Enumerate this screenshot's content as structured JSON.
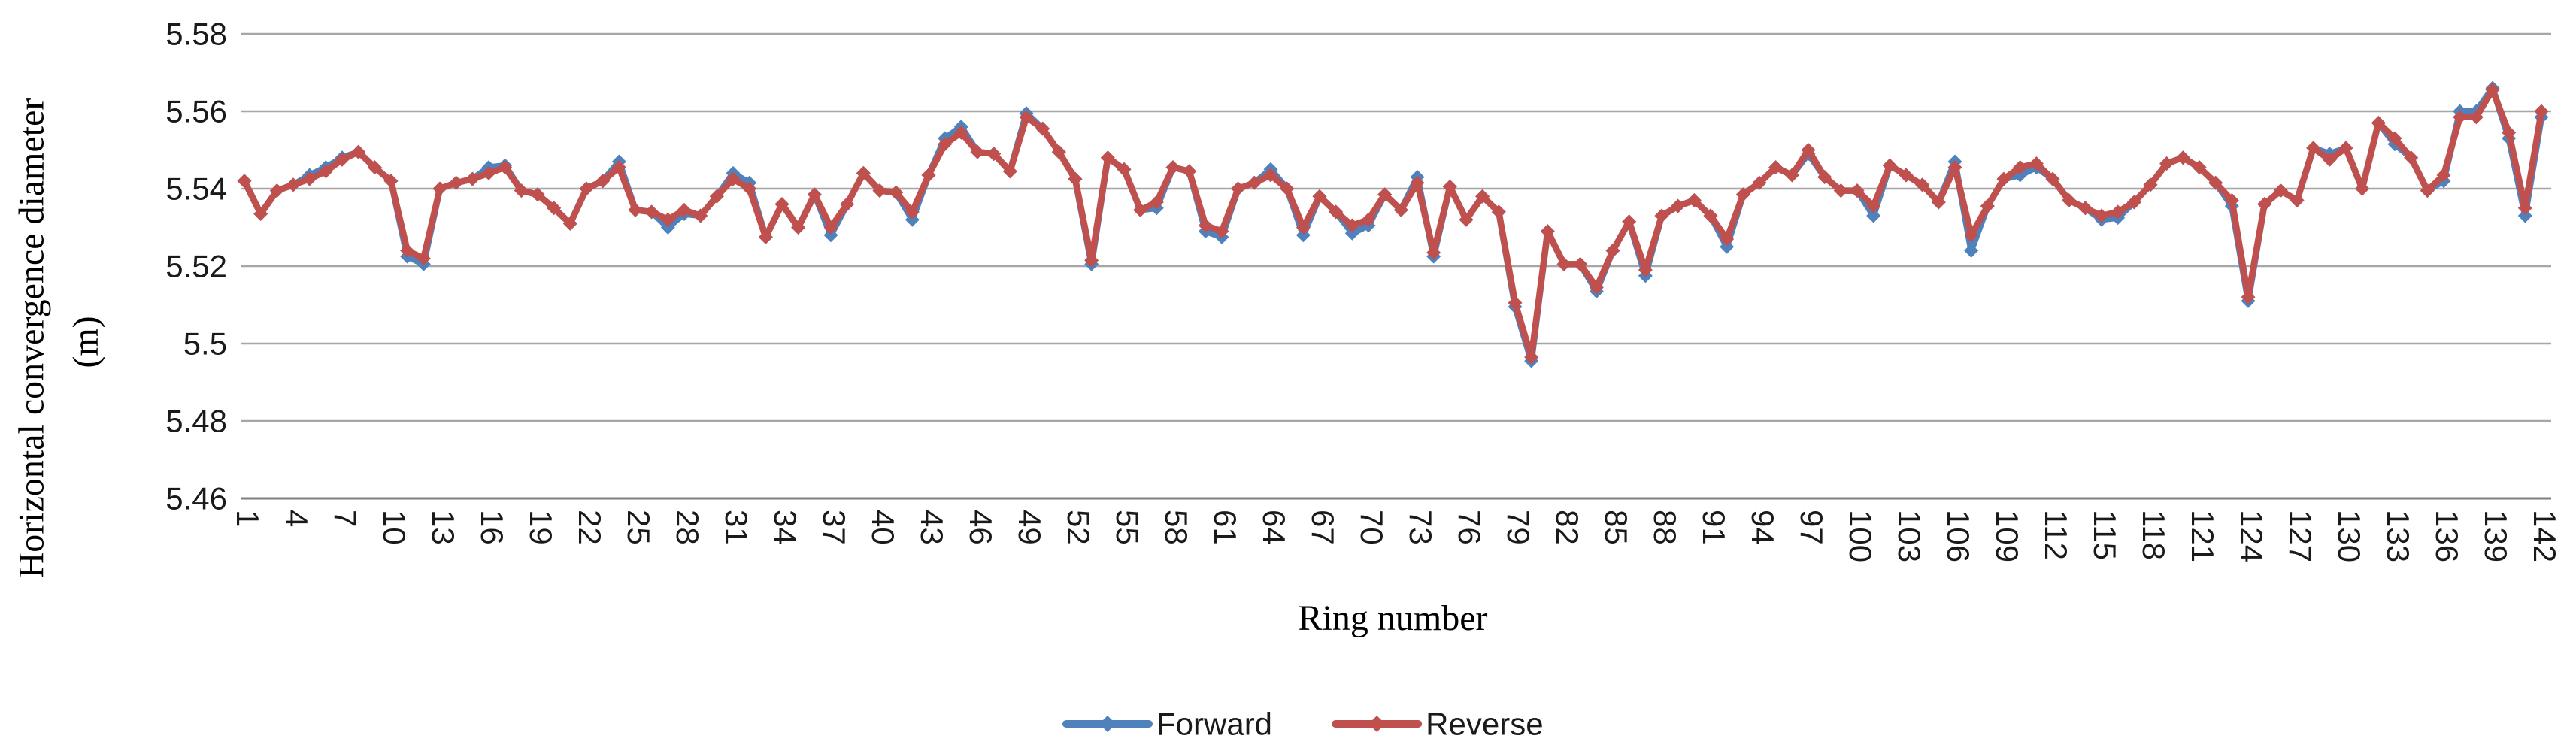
{
  "figure": {
    "background": "#ffffff",
    "x_axis_title": "Ring number",
    "y_axis_title_line1": "Horizontal convergence diameter",
    "y_axis_title_line2": "(m)",
    "text_color": "#1a1a1a",
    "gridline_color": "#a6a6a6",
    "axis_line_color": "#7f7f7f"
  },
  "legend": {
    "items": [
      {
        "label": "Forward",
        "color": "#4F81BD"
      },
      {
        "label": "Reverse",
        "color": "#C0504D"
      }
    ]
  },
  "chart_data": {
    "type": "line",
    "title": "",
    "xlabel": "Ring number",
    "ylabel": "Horizontal convergence diameter (m)",
    "ylim": [
      5.46,
      5.58
    ],
    "y_tick_labels": [
      "5.58",
      "5.56",
      "5.54",
      "5.52",
      "5.5",
      "5.48",
      "5.46"
    ],
    "y_tick_values": [
      5.58,
      5.56,
      5.54,
      5.52,
      5.5,
      5.48,
      5.46
    ],
    "x_range": [
      1,
      142
    ],
    "x_tick_labels": [
      "1",
      "4",
      "7",
      "10",
      "13",
      "16",
      "19",
      "22",
      "25",
      "28",
      "31",
      "34",
      "37",
      "40",
      "43",
      "46",
      "49",
      "52",
      "55",
      "58",
      "61",
      "64",
      "67",
      "70",
      "73",
      "76",
      "79",
      "82",
      "85",
      "88",
      "91",
      "94",
      "97",
      "100",
      "103",
      "106",
      "109",
      "112",
      "115",
      "118",
      "121",
      "124",
      "127",
      "130",
      "133",
      "136",
      "139",
      "142"
    ],
    "grid": true,
    "legend_position": "bottom",
    "marker": "diamond",
    "series": [
      {
        "name": "Forward",
        "color": "#4F81BD",
        "values": [
          5.542,
          5.5335,
          5.5395,
          5.541,
          5.5435,
          5.5455,
          5.548,
          5.5495,
          5.5455,
          5.542,
          5.5225,
          5.5205,
          5.54,
          5.5415,
          5.5425,
          5.5455,
          5.546,
          5.5395,
          5.5385,
          5.535,
          5.531,
          5.54,
          5.542,
          5.547,
          5.5345,
          5.534,
          5.53,
          5.5335,
          5.533,
          5.538,
          5.544,
          5.5415,
          5.5275,
          5.536,
          5.53,
          5.5385,
          5.528,
          5.536,
          5.544,
          5.5395,
          5.539,
          5.532,
          5.5435,
          5.553,
          5.556,
          5.5495,
          5.549,
          5.5445,
          5.5595,
          5.5555,
          5.5495,
          5.5425,
          5.5205,
          5.548,
          5.545,
          5.5345,
          5.535,
          5.5455,
          5.5445,
          5.529,
          5.5275,
          5.54,
          5.5415,
          5.545,
          5.54,
          5.528,
          5.538,
          5.534,
          5.5285,
          5.5305,
          5.5385,
          5.5345,
          5.543,
          5.5225,
          5.5405,
          5.532,
          5.538,
          5.534,
          5.5095,
          5.4955,
          5.529,
          5.5205,
          5.5205,
          5.5135,
          5.524,
          5.5315,
          5.5175,
          5.533,
          5.5355,
          5.537,
          5.533,
          5.525,
          5.5385,
          5.5415,
          5.5455,
          5.5435,
          5.549,
          5.543,
          5.5395,
          5.5395,
          5.533,
          5.546,
          5.5435,
          5.541,
          5.5365,
          5.547,
          5.524,
          5.5355,
          5.5425,
          5.5435,
          5.5455,
          5.5425,
          5.537,
          5.535,
          5.532,
          5.5325,
          5.5365,
          5.541,
          5.5465,
          5.548,
          5.5455,
          5.5415,
          5.5355,
          5.511,
          5.536,
          5.5395,
          5.537,
          5.5505,
          5.549,
          5.5505,
          5.54,
          5.557,
          5.5515,
          5.548,
          5.5395,
          5.542,
          5.56,
          5.56,
          5.566,
          5.553,
          5.533,
          5.5585
        ]
      },
      {
        "name": "Reverse",
        "color": "#C0504D",
        "values": [
          5.542,
          5.5335,
          5.5395,
          5.541,
          5.5425,
          5.5445,
          5.5475,
          5.5495,
          5.5455,
          5.542,
          5.524,
          5.522,
          5.54,
          5.5415,
          5.5425,
          5.544,
          5.5455,
          5.5395,
          5.5385,
          5.535,
          5.531,
          5.54,
          5.542,
          5.5455,
          5.5345,
          5.534,
          5.532,
          5.5345,
          5.533,
          5.538,
          5.5425,
          5.54,
          5.5275,
          5.536,
          5.53,
          5.5385,
          5.53,
          5.536,
          5.544,
          5.5395,
          5.539,
          5.534,
          5.5435,
          5.5515,
          5.5545,
          5.5495,
          5.549,
          5.5445,
          5.5585,
          5.5555,
          5.5495,
          5.5425,
          5.5215,
          5.548,
          5.545,
          5.5345,
          5.5365,
          5.5455,
          5.5445,
          5.5305,
          5.529,
          5.54,
          5.5415,
          5.5435,
          5.54,
          5.53,
          5.538,
          5.534,
          5.5305,
          5.532,
          5.5385,
          5.5345,
          5.5415,
          5.5235,
          5.5405,
          5.532,
          5.538,
          5.534,
          5.5105,
          5.4965,
          5.529,
          5.5205,
          5.5205,
          5.5145,
          5.524,
          5.5315,
          5.519,
          5.533,
          5.5355,
          5.537,
          5.533,
          5.527,
          5.5385,
          5.5415,
          5.5455,
          5.5435,
          5.55,
          5.543,
          5.5395,
          5.5395,
          5.5355,
          5.546,
          5.5435,
          5.541,
          5.5365,
          5.5455,
          5.528,
          5.5355,
          5.5425,
          5.5455,
          5.5465,
          5.5425,
          5.537,
          5.535,
          5.533,
          5.534,
          5.5365,
          5.541,
          5.5465,
          5.548,
          5.5455,
          5.5415,
          5.537,
          5.512,
          5.536,
          5.5395,
          5.537,
          5.5505,
          5.5475,
          5.5505,
          5.54,
          5.557,
          5.553,
          5.548,
          5.5395,
          5.5435,
          5.5585,
          5.5585,
          5.5655,
          5.5545,
          5.535,
          5.56
        ]
      }
    ]
  }
}
